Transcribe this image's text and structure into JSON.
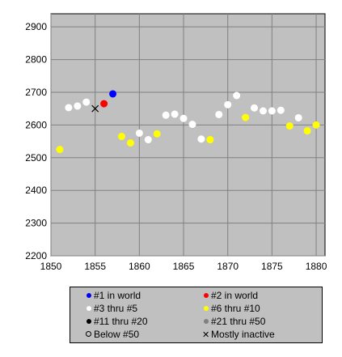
{
  "chart_data": {
    "type": "scatter",
    "title": "",
    "xlabel": "",
    "ylabel": "",
    "xlim": [
      1850,
      1881
    ],
    "ylim": [
      2200,
      2940
    ],
    "xticks": [
      "1850",
      "1855",
      "1860",
      "1865",
      "1870",
      "1875",
      "1880"
    ],
    "yticks": [
      "2200",
      "2300",
      "2400",
      "2500",
      "2600",
      "2700",
      "2800",
      "2900"
    ],
    "grid": true,
    "legend_position": "bottom",
    "series": [
      {
        "name": "#1 in world",
        "color": "#0000ff",
        "marker": "dot",
        "points": [
          [
            1857,
            2695
          ]
        ]
      },
      {
        "name": "#2 in world",
        "color": "#ff0000",
        "marker": "dot",
        "points": [
          [
            1856,
            2665
          ]
        ]
      },
      {
        "name": "#3 thru #5",
        "color": "#ffffff",
        "marker": "dot",
        "points": [
          [
            1852,
            2653
          ],
          [
            1853,
            2658
          ],
          [
            1854,
            2670
          ],
          [
            1860,
            2575
          ],
          [
            1861,
            2555
          ],
          [
            1863,
            2630
          ],
          [
            1864,
            2633
          ],
          [
            1865,
            2620
          ],
          [
            1866,
            2602
          ],
          [
            1867,
            2557
          ],
          [
            1869,
            2632
          ],
          [
            1870,
            2662
          ],
          [
            1871,
            2690
          ],
          [
            1873,
            2652
          ],
          [
            1874,
            2643
          ],
          [
            1875,
            2643
          ],
          [
            1876,
            2645
          ],
          [
            1878,
            2622
          ]
        ]
      },
      {
        "name": "#6 thru #10",
        "color": "#ffff00",
        "marker": "dot",
        "points": [
          [
            1851,
            2525
          ],
          [
            1858,
            2565
          ],
          [
            1859,
            2545
          ],
          [
            1862,
            2573
          ],
          [
            1868,
            2555
          ],
          [
            1872,
            2623
          ],
          [
            1877,
            2597
          ],
          [
            1879,
            2582
          ],
          [
            1880,
            2600
          ]
        ]
      },
      {
        "name": "#11 thru #20",
        "color": "#000000",
        "marker": "dot",
        "points": []
      },
      {
        "name": "#21 thru #50",
        "color": "#808080",
        "marker": "dot",
        "points": []
      },
      {
        "name": "Below #50",
        "color": "#000000",
        "marker": "hollow",
        "points": []
      },
      {
        "name": "Mostly inactive",
        "color": "#000000",
        "marker": "x",
        "points": [
          [
            1855,
            2650
          ]
        ]
      }
    ]
  }
}
